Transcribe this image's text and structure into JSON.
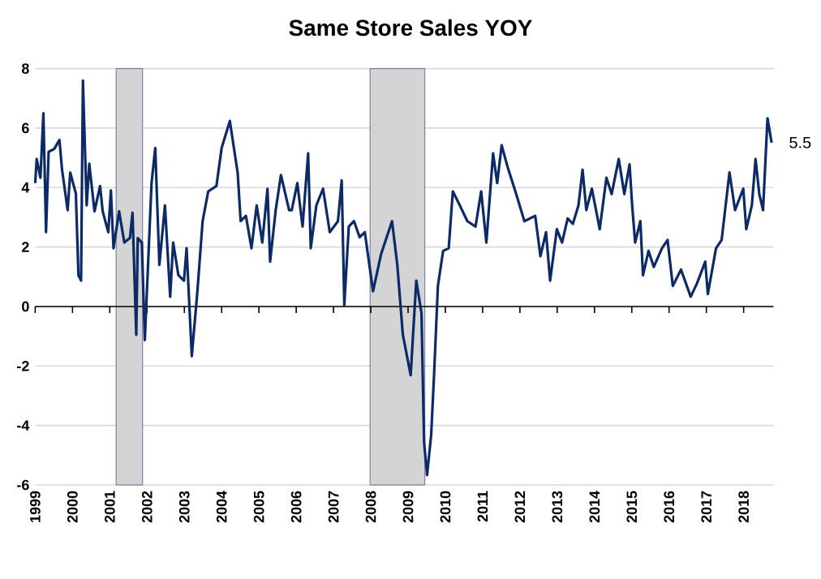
{
  "chart_data": {
    "type": "line",
    "title": "Same Store Sales YOY",
    "x": [
      1999.0,
      1999.04,
      1999.14,
      1999.22,
      1999.29,
      1999.36,
      1999.51,
      1999.65,
      1999.72,
      1999.87,
      1999.94,
      2000.09,
      2000.16,
      2000.23,
      2000.28,
      2000.38,
      2000.45,
      2000.59,
      2000.74,
      2000.81,
      2000.96,
      2001.03,
      2001.1,
      2001.25,
      2001.39,
      2001.54,
      2001.61,
      2001.71,
      2001.75,
      2001.86,
      2001.94,
      2002.12,
      2002.22,
      2002.33,
      2002.48,
      2002.62,
      2002.7,
      2002.84,
      2002.99,
      2003.06,
      2003.2,
      2003.35,
      2003.49,
      2003.64,
      2003.86,
      2004.0,
      2004.22,
      2004.43,
      2004.51,
      2004.65,
      2004.8,
      2004.94,
      2005.09,
      2005.23,
      2005.3,
      2005.45,
      2005.59,
      2005.81,
      2005.88,
      2006.03,
      2006.17,
      2006.32,
      2006.39,
      2006.54,
      2006.72,
      2006.9,
      2007.12,
      2007.22,
      2007.29,
      2007.41,
      2007.55,
      2007.7,
      2007.84,
      2008.06,
      2008.28,
      2008.57,
      2008.71,
      2008.86,
      2009.07,
      2009.22,
      2009.36,
      2009.43,
      2009.51,
      2009.62,
      2009.7,
      2009.8,
      2009.94,
      2010.09,
      2010.2,
      2010.38,
      2010.59,
      2010.81,
      2010.96,
      2011.1,
      2011.28,
      2011.39,
      2011.51,
      2011.67,
      2011.9,
      2012.12,
      2012.41,
      2012.55,
      2012.7,
      2012.81,
      2012.99,
      2013.13,
      2013.28,
      2013.42,
      2013.57,
      2013.68,
      2013.78,
      2013.93,
      2014.14,
      2014.32,
      2014.46,
      2014.65,
      2014.8,
      2014.94,
      2015.01,
      2015.09,
      2015.23,
      2015.3,
      2015.45,
      2015.59,
      2015.81,
      2015.96,
      2016.1,
      2016.32,
      2016.58,
      2016.75,
      2016.97,
      2017.04,
      2017.26,
      2017.41,
      2017.62,
      2017.77,
      2017.99,
      2018.07,
      2018.22,
      2018.32,
      2018.42,
      2018.52,
      2018.64,
      2018.75
    ],
    "series": [
      {
        "color": "#0c2a66",
        "values": [
          4.15,
          4.96,
          4.33,
          6.5,
          2.5,
          5.2,
          5.3,
          5.6,
          4.6,
          3.24,
          4.5,
          3.8,
          1.05,
          0.87,
          7.6,
          3.4,
          4.8,
          3.2,
          4.05,
          3.2,
          2.5,
          3.9,
          1.96,
          3.2,
          2.15,
          2.3,
          3.15,
          -0.95,
          2.3,
          2.15,
          -1.13,
          4.15,
          5.33,
          1.4,
          3.4,
          0.33,
          2.15,
          1.05,
          0.87,
          1.96,
          -1.67,
          0.51,
          2.87,
          3.87,
          4.05,
          5.33,
          6.24,
          4.5,
          2.87,
          3.05,
          1.96,
          3.4,
          2.15,
          3.96,
          1.51,
          3.24,
          4.42,
          3.24,
          3.24,
          4.15,
          2.69,
          5.15,
          1.96,
          3.4,
          3.96,
          2.5,
          2.87,
          4.24,
          0.05,
          2.69,
          2.87,
          2.33,
          2.5,
          0.51,
          1.78,
          2.87,
          1.42,
          -0.95,
          -2.31,
          0.87,
          -0.22,
          -4.58,
          -5.67,
          -4.31,
          -2.22,
          0.69,
          1.87,
          1.96,
          3.87,
          3.42,
          2.87,
          2.69,
          3.87,
          2.15,
          5.15,
          4.15,
          5.42,
          4.69,
          3.78,
          2.87,
          3.05,
          1.69,
          2.5,
          0.87,
          2.6,
          2.15,
          2.96,
          2.78,
          3.4,
          4.6,
          3.24,
          3.96,
          2.6,
          4.33,
          3.78,
          4.96,
          3.78,
          4.78,
          3.4,
          2.15,
          2.87,
          1.05,
          1.87,
          1.33,
          1.96,
          2.24,
          0.69,
          1.24,
          0.33,
          0.78,
          1.51,
          0.42,
          1.96,
          2.24,
          4.51,
          3.24,
          3.96,
          2.6,
          3.4,
          4.96,
          3.78,
          3.24,
          6.33,
          5.51
        ]
      }
    ],
    "xlim": [
      1999,
      2018.8
    ],
    "ylim": [
      -6,
      8
    ],
    "xticks": [
      1999,
      2000,
      2001,
      2002,
      2003,
      2004,
      2005,
      2006,
      2007,
      2008,
      2009,
      2010,
      2011,
      2012,
      2013,
      2014,
      2015,
      2016,
      2017,
      2018
    ],
    "yticks": [
      -6,
      -4,
      -2,
      0,
      2,
      4,
      6,
      8
    ],
    "grid": "y",
    "marker": "none",
    "line_style": "solid",
    "bands": [
      {
        "axis": "x",
        "from": 2001.17,
        "to": 2001.88,
        "color": "#d4d4d4"
      },
      {
        "axis": "x",
        "from": 2007.98,
        "to": 2009.45,
        "color": "#d4d4d4"
      }
    ],
    "annotations": [
      "5.5"
    ]
  }
}
